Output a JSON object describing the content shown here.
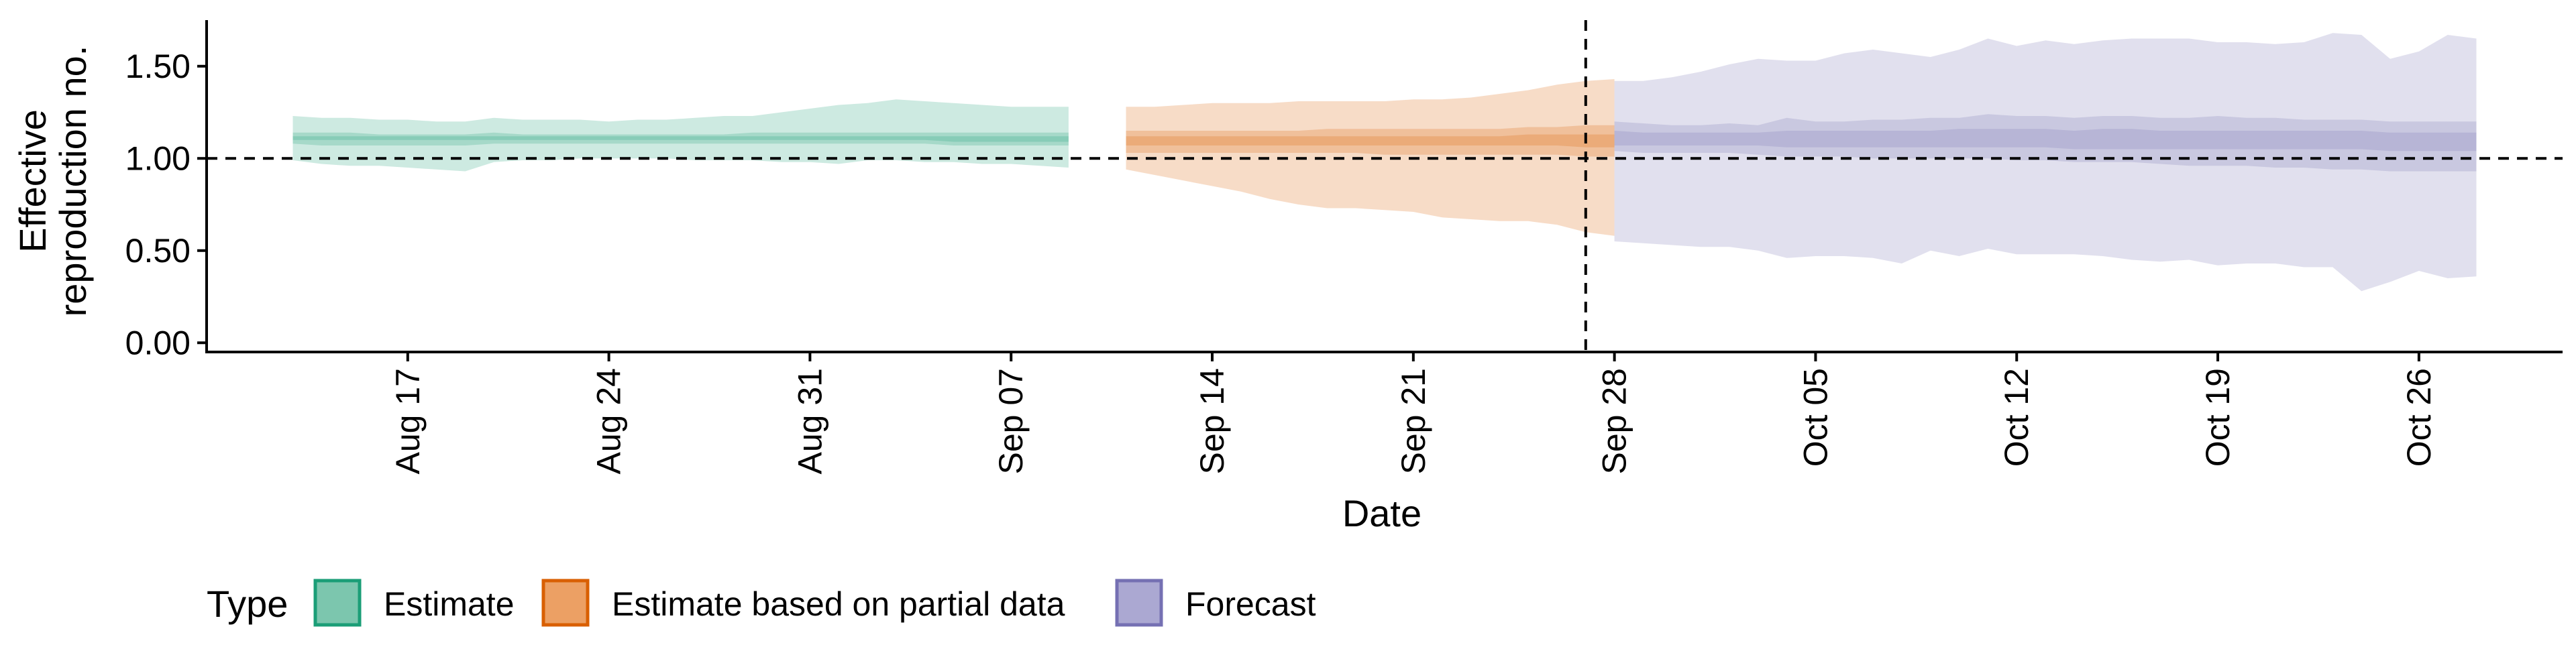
{
  "chart_data": {
    "type": "area",
    "title": "",
    "xlabel": "Date",
    "ylabel_lines": [
      "Effective",
      "reproduction no."
    ],
    "x_start": "2020-08-13",
    "ylim": [
      -0.05,
      1.75
    ],
    "xlim": [
      "2020-08-10",
      "2020-10-31"
    ],
    "y_ticks": [
      {
        "value": 0.0,
        "label": "0.00"
      },
      {
        "value": 0.5,
        "label": "0.50"
      },
      {
        "value": 1.0,
        "label": "1.00"
      },
      {
        "value": 1.5,
        "label": "1.50"
      }
    ],
    "x_ticks": [
      {
        "date": "2020-08-17",
        "label": "Aug 17"
      },
      {
        "date": "2020-08-24",
        "label": "Aug 24"
      },
      {
        "date": "2020-08-31",
        "label": "Aug 31"
      },
      {
        "date": "2020-09-07",
        "label": "Sep 07"
      },
      {
        "date": "2020-09-14",
        "label": "Sep 14"
      },
      {
        "date": "2020-09-21",
        "label": "Sep 21"
      },
      {
        "date": "2020-09-28",
        "label": "Sep 28"
      },
      {
        "date": "2020-10-05",
        "label": "Oct 05"
      },
      {
        "date": "2020-10-12",
        "label": "Oct 12"
      },
      {
        "date": "2020-10-19",
        "label": "Oct 19"
      },
      {
        "date": "2020-10-26",
        "label": "Oct 26"
      }
    ],
    "reference_line_y": 1.0,
    "reference_line_x": "2020-09-27",
    "grid": false,
    "legend": {
      "title": "Type",
      "position": "bottom-left",
      "items": [
        {
          "label": "Estimate",
          "fill": "#7cc6ae",
          "stroke": "#1b9e77"
        },
        {
          "label": "Estimate based on partial data",
          "fill": "#eca064",
          "stroke": "#d95f02"
        },
        {
          "label": "Forecast",
          "fill": "#aba8d2",
          "stroke": "#7570b3"
        }
      ]
    },
    "series": [
      {
        "type_label": "Estimate",
        "color": "#1b9e77",
        "start_date": "2020-08-13",
        "upper90": [
          1.23,
          1.22,
          1.22,
          1.21,
          1.21,
          1.2,
          1.2,
          1.22,
          1.21,
          1.21,
          1.21,
          1.2,
          1.21,
          1.21,
          1.22,
          1.23,
          1.23,
          1.25,
          1.27,
          1.29,
          1.3,
          1.32,
          1.31,
          1.3,
          1.29,
          1.28,
          1.28,
          1.28
        ],
        "lower90": [
          0.99,
          0.97,
          0.96,
          0.96,
          0.95,
          0.94,
          0.93,
          0.98,
          0.99,
          0.99,
          1.0,
          1.0,
          1.0,
          1.0,
          0.99,
          0.99,
          0.99,
          0.98,
          0.98,
          0.97,
          0.99,
          0.99,
          0.98,
          0.98,
          0.97,
          0.97,
          0.96,
          0.95
        ],
        "upper50": [
          1.14,
          1.14,
          1.14,
          1.13,
          1.13,
          1.13,
          1.13,
          1.14,
          1.13,
          1.13,
          1.13,
          1.13,
          1.13,
          1.13,
          1.13,
          1.13,
          1.14,
          1.14,
          1.14,
          1.14,
          1.14,
          1.14,
          1.14,
          1.14,
          1.14,
          1.14,
          1.14,
          1.14
        ],
        "lower50": [
          1.08,
          1.07,
          1.07,
          1.07,
          1.07,
          1.07,
          1.07,
          1.08,
          1.08,
          1.08,
          1.08,
          1.08,
          1.08,
          1.08,
          1.08,
          1.08,
          1.08,
          1.08,
          1.08,
          1.08,
          1.08,
          1.08,
          1.08,
          1.07,
          1.07,
          1.07,
          1.07,
          1.07
        ],
        "upper20": [
          1.12,
          1.12,
          1.12,
          1.12,
          1.12,
          1.12,
          1.12,
          1.12,
          1.12,
          1.12,
          1.12,
          1.12,
          1.12,
          1.12,
          1.12,
          1.12,
          1.12,
          1.12,
          1.12,
          1.12,
          1.12,
          1.12,
          1.12,
          1.12,
          1.12,
          1.12,
          1.12,
          1.12
        ],
        "lower20": [
          1.1,
          1.1,
          1.1,
          1.1,
          1.1,
          1.1,
          1.1,
          1.1,
          1.1,
          1.1,
          1.1,
          1.1,
          1.1,
          1.1,
          1.1,
          1.1,
          1.1,
          1.1,
          1.1,
          1.1,
          1.1,
          1.1,
          1.1,
          1.09,
          1.09,
          1.09,
          1.09,
          1.09
        ]
      },
      {
        "type_label": "Estimate based on partial data",
        "color": "#d95f02",
        "start_date": "2020-09-11",
        "upper90": [
          1.28,
          1.28,
          1.29,
          1.3,
          1.3,
          1.3,
          1.31,
          1.31,
          1.31,
          1.31,
          1.32,
          1.32,
          1.33,
          1.35,
          1.37,
          1.4,
          1.42,
          1.43
        ],
        "lower90": [
          0.94,
          0.91,
          0.88,
          0.85,
          0.82,
          0.78,
          0.75,
          0.73,
          0.73,
          0.72,
          0.71,
          0.68,
          0.67,
          0.66,
          0.66,
          0.64,
          0.6,
          0.58
        ],
        "upper50": [
          1.15,
          1.15,
          1.15,
          1.15,
          1.15,
          1.15,
          1.15,
          1.16,
          1.16,
          1.16,
          1.16,
          1.16,
          1.16,
          1.16,
          1.17,
          1.17,
          1.18,
          1.18
        ],
        "lower50": [
          1.03,
          1.03,
          1.03,
          1.03,
          1.03,
          1.03,
          1.03,
          1.03,
          1.03,
          1.02,
          1.02,
          1.02,
          1.02,
          1.02,
          1.02,
          1.02,
          1.01,
          1.01
        ],
        "upper20": [
          1.12,
          1.12,
          1.12,
          1.12,
          1.12,
          1.12,
          1.12,
          1.12,
          1.12,
          1.12,
          1.12,
          1.12,
          1.12,
          1.12,
          1.13,
          1.13,
          1.13,
          1.13
        ],
        "lower20": [
          1.07,
          1.07,
          1.07,
          1.07,
          1.07,
          1.07,
          1.07,
          1.07,
          1.07,
          1.07,
          1.07,
          1.07,
          1.07,
          1.07,
          1.07,
          1.07,
          1.06,
          1.06
        ]
      },
      {
        "type_label": "Forecast",
        "color": "#7570b3",
        "start_date": "2020-09-28",
        "upper90": [
          1.42,
          1.42,
          1.44,
          1.47,
          1.51,
          1.54,
          1.53,
          1.53,
          1.57,
          1.59,
          1.57,
          1.55,
          1.59,
          1.65,
          1.61,
          1.64,
          1.62,
          1.64,
          1.65,
          1.65,
          1.65,
          1.63,
          1.63,
          1.62,
          1.63,
          1.68,
          1.67,
          1.54,
          1.58,
          1.67,
          1.65
        ],
        "lower90": [
          0.55,
          0.54,
          0.53,
          0.52,
          0.52,
          0.5,
          0.46,
          0.47,
          0.47,
          0.46,
          0.43,
          0.5,
          0.47,
          0.51,
          0.48,
          0.48,
          0.48,
          0.47,
          0.45,
          0.44,
          0.45,
          0.42,
          0.43,
          0.43,
          0.41,
          0.41,
          0.28,
          0.33,
          0.39,
          0.35,
          0.36
        ],
        "upper50": [
          1.2,
          1.19,
          1.18,
          1.18,
          1.19,
          1.18,
          1.22,
          1.2,
          1.2,
          1.21,
          1.21,
          1.22,
          1.22,
          1.24,
          1.23,
          1.23,
          1.22,
          1.23,
          1.23,
          1.22,
          1.22,
          1.23,
          1.22,
          1.22,
          1.21,
          1.21,
          1.21,
          1.2,
          1.2,
          1.2,
          1.2
        ],
        "lower50": [
          1.04,
          1.03,
          1.03,
          1.03,
          1.03,
          1.02,
          1.01,
          1.01,
          1.01,
          1.0,
          1.0,
          1.0,
          1.0,
          1.0,
          0.99,
          0.99,
          0.98,
          0.98,
          0.98,
          0.97,
          0.96,
          0.96,
          0.96,
          0.95,
          0.95,
          0.94,
          0.94,
          0.93,
          0.93,
          0.93,
          0.93
        ],
        "upper20": [
          1.15,
          1.14,
          1.14,
          1.14,
          1.14,
          1.14,
          1.15,
          1.15,
          1.15,
          1.15,
          1.15,
          1.15,
          1.16,
          1.16,
          1.16,
          1.16,
          1.15,
          1.16,
          1.16,
          1.15,
          1.15,
          1.15,
          1.15,
          1.15,
          1.15,
          1.15,
          1.15,
          1.14,
          1.14,
          1.14,
          1.14
        ],
        "lower20": [
          1.07,
          1.07,
          1.07,
          1.07,
          1.07,
          1.07,
          1.06,
          1.06,
          1.06,
          1.06,
          1.06,
          1.06,
          1.06,
          1.06,
          1.06,
          1.06,
          1.05,
          1.05,
          1.05,
          1.05,
          1.05,
          1.05,
          1.05,
          1.05,
          1.05,
          1.05,
          1.05,
          1.04,
          1.04,
          1.04,
          1.04
        ]
      }
    ]
  }
}
